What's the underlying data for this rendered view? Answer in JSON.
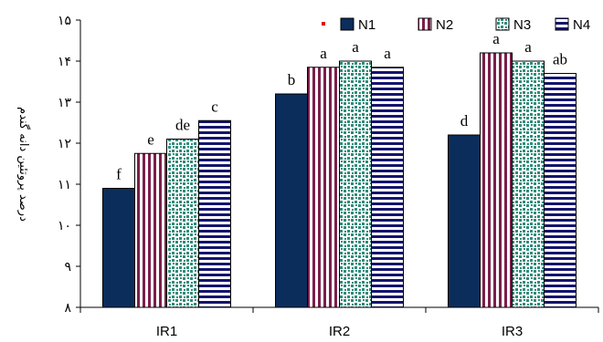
{
  "chart_data": {
    "type": "bar",
    "title": "",
    "xlabel": "",
    "ylabel": "درصد پروتئین دانه گندم",
    "ylim": [
      8,
      15
    ],
    "yticks": [
      8,
      9,
      10,
      11,
      12,
      13,
      14,
      15
    ],
    "ytick_labels": [
      "۸",
      "۹",
      "۱۰",
      "۱۱",
      "۱۲",
      "۱۳",
      "۱۴",
      "۱۵"
    ],
    "categories": [
      "IR1",
      "IR2",
      "IR3"
    ],
    "series": [
      {
        "name": "N1",
        "values": [
          10.9,
          13.2,
          12.2
        ],
        "labels": [
          "f",
          "b",
          "d"
        ],
        "color": "#0b2d5b",
        "pattern": "solid"
      },
      {
        "name": "N2",
        "values": [
          11.75,
          13.85,
          14.2
        ],
        "labels": [
          "e",
          "a",
          "a"
        ],
        "color": "#7a1f4a",
        "pattern": "vstripes"
      },
      {
        "name": "N3",
        "values": [
          12.1,
          14.0,
          14.0
        ],
        "labels": [
          "de",
          "a",
          "a"
        ],
        "color": "#2e8b7a",
        "pattern": "dots"
      },
      {
        "name": "N4",
        "values": [
          12.55,
          13.85,
          13.7
        ],
        "labels": [
          "c",
          "a",
          "ab"
        ],
        "color": "#14146e",
        "pattern": "hstripes"
      }
    ],
    "legend_position": "top-right",
    "grid": false,
    "legend_marker_n1_color": "#e00000"
  }
}
